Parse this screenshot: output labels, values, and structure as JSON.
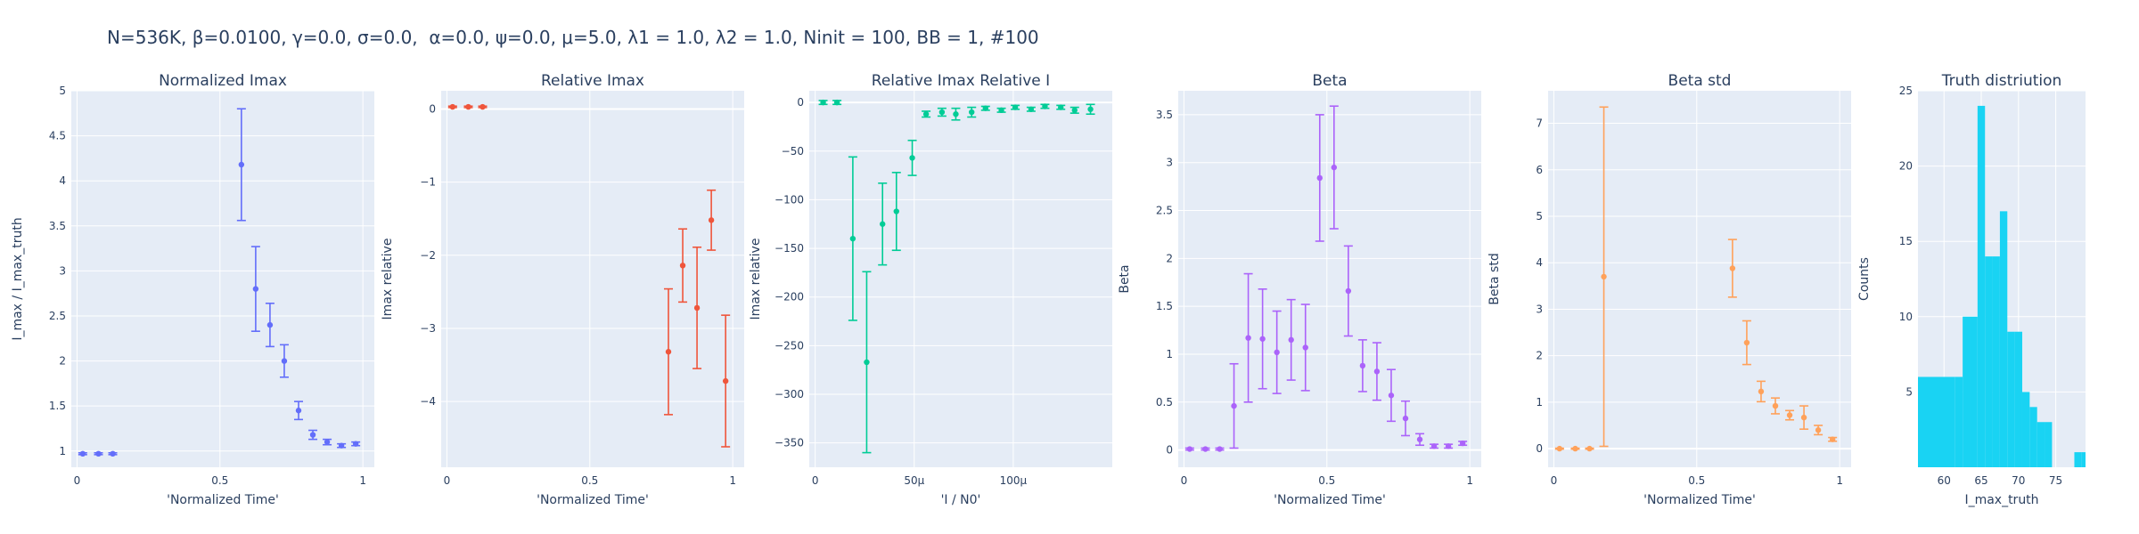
{
  "suptitle": "N=536K, β=0.0100, γ=0.0, σ=0.0,  α=0.0, ψ=0.0, μ=5.0, λ1 = 1.0, λ2 = 1.0, Ninit = 100, BB = 1, #100",
  "colors": {
    "plot_bg": "#e5ecf6",
    "grid": "#ffffff",
    "text": "#2a3f5f",
    "s1": "#636efa",
    "s2": "#ef553b",
    "s3": "#00cc96",
    "s4": "#ab63fa",
    "s5": "#ffa15a",
    "s6": "#19d3f3"
  },
  "chart_data": [
    {
      "type": "scatter",
      "title": "Normalized Imax",
      "xlabel": "'Normalized Time'",
      "ylabel": "I_max / I_max_truth",
      "xlim": [
        -0.02,
        1.04
      ],
      "ylim": [
        0.82,
        5.0
      ],
      "xticks": [
        0,
        0.5,
        1
      ],
      "xticklabels": [
        "0",
        "0.5",
        "1"
      ],
      "yticks": [
        1,
        1.5,
        2,
        2.5,
        3,
        3.5,
        4,
        4.5,
        5
      ],
      "yticklabels": [
        "1",
        "1.5",
        "2",
        "2.5",
        "3",
        "3.5",
        "4",
        "4.5",
        "5"
      ],
      "color": "#636efa",
      "x": [
        0.02,
        0.075,
        0.125,
        0.575,
        0.625,
        0.675,
        0.725,
        0.775,
        0.825,
        0.875,
        0.925,
        0.975
      ],
      "y": [
        0.97,
        0.97,
        0.97,
        4.18,
        2.8,
        2.4,
        2.0,
        1.45,
        1.18,
        1.1,
        1.06,
        1.08
      ],
      "err": [
        0.01,
        0.01,
        0.01,
        0.62,
        0.47,
        0.24,
        0.18,
        0.1,
        0.05,
        0.03,
        0.02,
        0.02
      ]
    },
    {
      "type": "scatter",
      "title": "Relative Imax",
      "xlabel": "'Normalized Time'",
      "ylabel": "Imax relative",
      "xlim": [
        -0.02,
        1.04
      ],
      "ylim": [
        -4.9,
        0.25
      ],
      "xticks": [
        0,
        0.5,
        1
      ],
      "xticklabels": [
        "0",
        "0.5",
        "1"
      ],
      "yticks": [
        -4,
        -3,
        -2,
        -1,
        0
      ],
      "yticklabels": [
        "−4",
        "−3",
        "−2",
        "−1",
        "0"
      ],
      "color": "#ef553b",
      "x": [
        0.02,
        0.075,
        0.125,
        0.775,
        0.825,
        0.875,
        0.925,
        0.975
      ],
      "y": [
        0.03,
        0.03,
        0.03,
        -3.32,
        -2.14,
        -2.72,
        -1.52,
        -3.72
      ],
      "err": [
        0.01,
        0.01,
        0.01,
        0.86,
        0.5,
        0.83,
        0.41,
        0.9
      ]
    },
    {
      "type": "scatter",
      "title": "Relative Imax Relative I",
      "xlabel": "'I / N0'",
      "ylabel": "Imax relative",
      "xlim": [
        -3e-06,
        0.00015
      ],
      "ylim": [
        -375,
        12
      ],
      "xticks": [
        0,
        5e-05,
        0.0001
      ],
      "xticklabels": [
        "0",
        "50μ",
        "100μ"
      ],
      "yticks": [
        -350,
        -300,
        -250,
        -200,
        -150,
        -100,
        -50,
        0
      ],
      "yticklabels": [
        "−350",
        "−300",
        "−250",
        "−200",
        "−150",
        "−100",
        "−50",
        "0"
      ],
      "color": "#00cc96",
      "x": [
        4e-06,
        1.1e-05,
        1.9e-05,
        2.6e-05,
        3.4e-05,
        4.1e-05,
        4.9e-05,
        5.6e-05,
        6.4e-05,
        7.1e-05,
        7.9e-05,
        8.6e-05,
        9.4e-05,
        0.000101,
        0.000109,
        0.000116,
        0.000124,
        0.000131,
        0.000139
      ],
      "y": [
        0,
        0,
        -140,
        -267,
        -125,
        -112,
        -57,
        -12,
        -10,
        -12,
        -10,
        -6,
        -8,
        -5,
        -7,
        -4,
        -5,
        -8,
        -7
      ],
      "err": [
        2,
        2,
        84,
        93,
        42,
        40,
        18,
        3,
        4,
        6,
        5,
        2,
        2,
        2,
        2,
        2,
        2,
        3,
        5
      ]
    },
    {
      "type": "scatter",
      "title": "Beta",
      "xlabel": "'Normalized Time'",
      "ylabel": "Beta",
      "xlim": [
        -0.02,
        1.04
      ],
      "ylim": [
        -0.18,
        3.75
      ],
      "xticks": [
        0,
        0.5,
        1
      ],
      "xticklabels": [
        "0",
        "0.5",
        "1"
      ],
      "yticks": [
        0,
        0.5,
        1,
        1.5,
        2,
        2.5,
        3,
        3.5
      ],
      "yticklabels": [
        "0",
        "0.5",
        "1",
        "1.5",
        "2",
        "2.5",
        "3",
        "3.5"
      ],
      "color": "#ab63fa",
      "x": [
        0.02,
        0.075,
        0.125,
        0.175,
        0.225,
        0.275,
        0.325,
        0.375,
        0.425,
        0.475,
        0.525,
        0.575,
        0.625,
        0.675,
        0.725,
        0.775,
        0.825,
        0.875,
        0.925,
        0.975
      ],
      "y": [
        0.01,
        0.01,
        0.01,
        0.46,
        1.17,
        1.16,
        1.02,
        1.15,
        1.07,
        2.84,
        2.95,
        1.66,
        0.88,
        0.82,
        0.57,
        0.33,
        0.11,
        0.04,
        0.04,
        0.07
      ],
      "err": [
        0.01,
        0.01,
        0.01,
        0.44,
        0.67,
        0.52,
        0.43,
        0.42,
        0.45,
        0.66,
        0.64,
        0.47,
        0.27,
        0.3,
        0.27,
        0.18,
        0.06,
        0.02,
        0.02,
        0.02
      ]
    },
    {
      "type": "scatter",
      "title": "Beta std",
      "xlabel": "'Normalized Time'",
      "ylabel": "Beta std",
      "xlim": [
        -0.02,
        1.04
      ],
      "ylim": [
        -0.4,
        7.7
      ],
      "xticks": [
        0,
        0.5,
        1
      ],
      "xticklabels": [
        "0",
        "0.5",
        "1"
      ],
      "yticks": [
        0,
        1,
        2,
        3,
        4,
        5,
        6,
        7
      ],
      "yticklabels": [
        "0",
        "1",
        "2",
        "3",
        "4",
        "5",
        "6",
        "7"
      ],
      "color": "#ffa15a",
      "x": [
        0.02,
        0.075,
        0.125,
        0.175,
        0.625,
        0.675,
        0.725,
        0.775,
        0.825,
        0.875,
        0.925,
        0.975
      ],
      "y": [
        0.0,
        0.0,
        0.0,
        3.7,
        3.88,
        2.28,
        1.23,
        0.92,
        0.72,
        0.67,
        0.4,
        0.2
      ],
      "err": [
        0.01,
        0.01,
        0.01,
        3.65,
        0.62,
        0.47,
        0.22,
        0.17,
        0.1,
        0.25,
        0.1,
        0.04
      ]
    },
    {
      "type": "bar",
      "title": "Truth distriution",
      "xlabel": "I_max_truth",
      "ylabel": "Counts",
      "xlim": [
        56.5,
        79
      ],
      "ylim": [
        0,
        25
      ],
      "xticks": [
        60,
        65,
        70,
        75
      ],
      "xticklabels": [
        "60",
        "65",
        "70",
        "75"
      ],
      "yticks": [
        5,
        10,
        15,
        20,
        25
      ],
      "yticklabels": [
        "5",
        "10",
        "15",
        "20",
        "25"
      ],
      "color": "#19d3f3",
      "bin_edges": [
        56.5,
        61.5,
        62.5,
        63.5,
        64.5,
        65.5,
        66.5,
        67.5,
        68.5,
        69.5,
        70.5,
        71.5,
        72.5,
        73.5,
        74.5,
        75.5,
        77.5,
        78.5,
        79.0
      ],
      "values": [
        6,
        6,
        10,
        10,
        24,
        14,
        14,
        17,
        9,
        9,
        5,
        4,
        3,
        3,
        0,
        0,
        1,
        1
      ]
    }
  ]
}
